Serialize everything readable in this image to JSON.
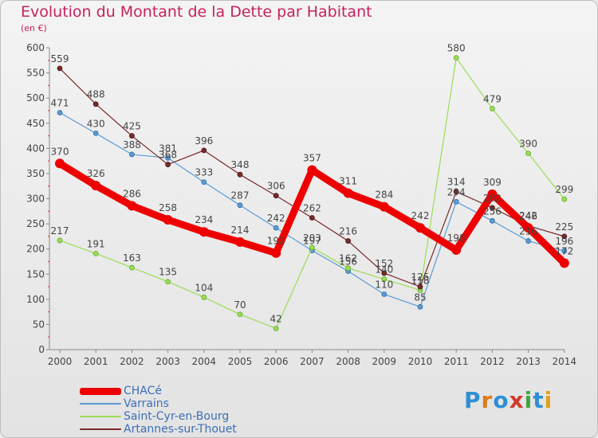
{
  "title": "Evolution du Montant de la Dette par Habitant",
  "unit_label": "(en €)",
  "brand": "Proxiti",
  "chart_data": {
    "type": "line",
    "x": [
      "2000",
      "2001",
      "2002",
      "2003",
      "2004",
      "2005",
      "2006",
      "2007",
      "2008",
      "2009",
      "2010",
      "2011",
      "2012",
      "2013",
      "2014"
    ],
    "yticks": [
      0,
      50,
      100,
      150,
      200,
      250,
      300,
      350,
      400,
      450,
      500,
      550,
      600
    ],
    "ylim": [
      0,
      600
    ],
    "grid": false,
    "legend_position": "bottom-left",
    "series": [
      {
        "name": "CHACé",
        "color": "#ee0000",
        "values": [
          370,
          326,
          286,
          258,
          234,
          214,
          192,
          357,
          311,
          284,
          242,
          198,
          309,
          242,
          172
        ],
        "labels": [
          "370",
          "326",
          "286",
          "258",
          "234",
          "214",
          "192",
          "357",
          "311",
          "284",
          "242",
          "198",
          "309",
          "242",
          "172"
        ]
      },
      {
        "name": "Varrains",
        "color": "#5b9bd5",
        "values": [
          471,
          430,
          388,
          381,
          333,
          287,
          242,
          197,
          156,
          110,
          85,
          294,
          256,
          216,
          196
        ],
        "labels": [
          "471",
          "430",
          "388",
          "381",
          "333",
          "287",
          "242",
          "197",
          "156",
          "110",
          "85",
          "294",
          "256",
          "216",
          "196"
        ]
      },
      {
        "name": "Saint-Cyr-en-Bourg",
        "color": "#99dd55",
        "values": [
          217,
          191,
          163,
          135,
          104,
          70,
          42,
          203,
          162,
          140,
          118,
          580,
          479,
          390,
          299
        ],
        "labels": [
          "217",
          "191",
          "163",
          "135",
          "104",
          "70",
          "42",
          "203",
          "162",
          "140",
          "118",
          "580",
          "479",
          "390",
          "299"
        ]
      },
      {
        "name": "Artannes-sur-Thouet",
        "color": "#7a2a2a",
        "values": [
          559,
          488,
          425,
          368,
          396,
          348,
          306,
          262,
          216,
          152,
          125,
          314,
          282,
          246,
          225
        ],
        "labels": [
          "559",
          "488",
          "425",
          "368",
          "396",
          "348",
          "306",
          "262",
          "216",
          "152",
          "125",
          "314",
          "282",
          "246",
          "225"
        ]
      }
    ]
  }
}
